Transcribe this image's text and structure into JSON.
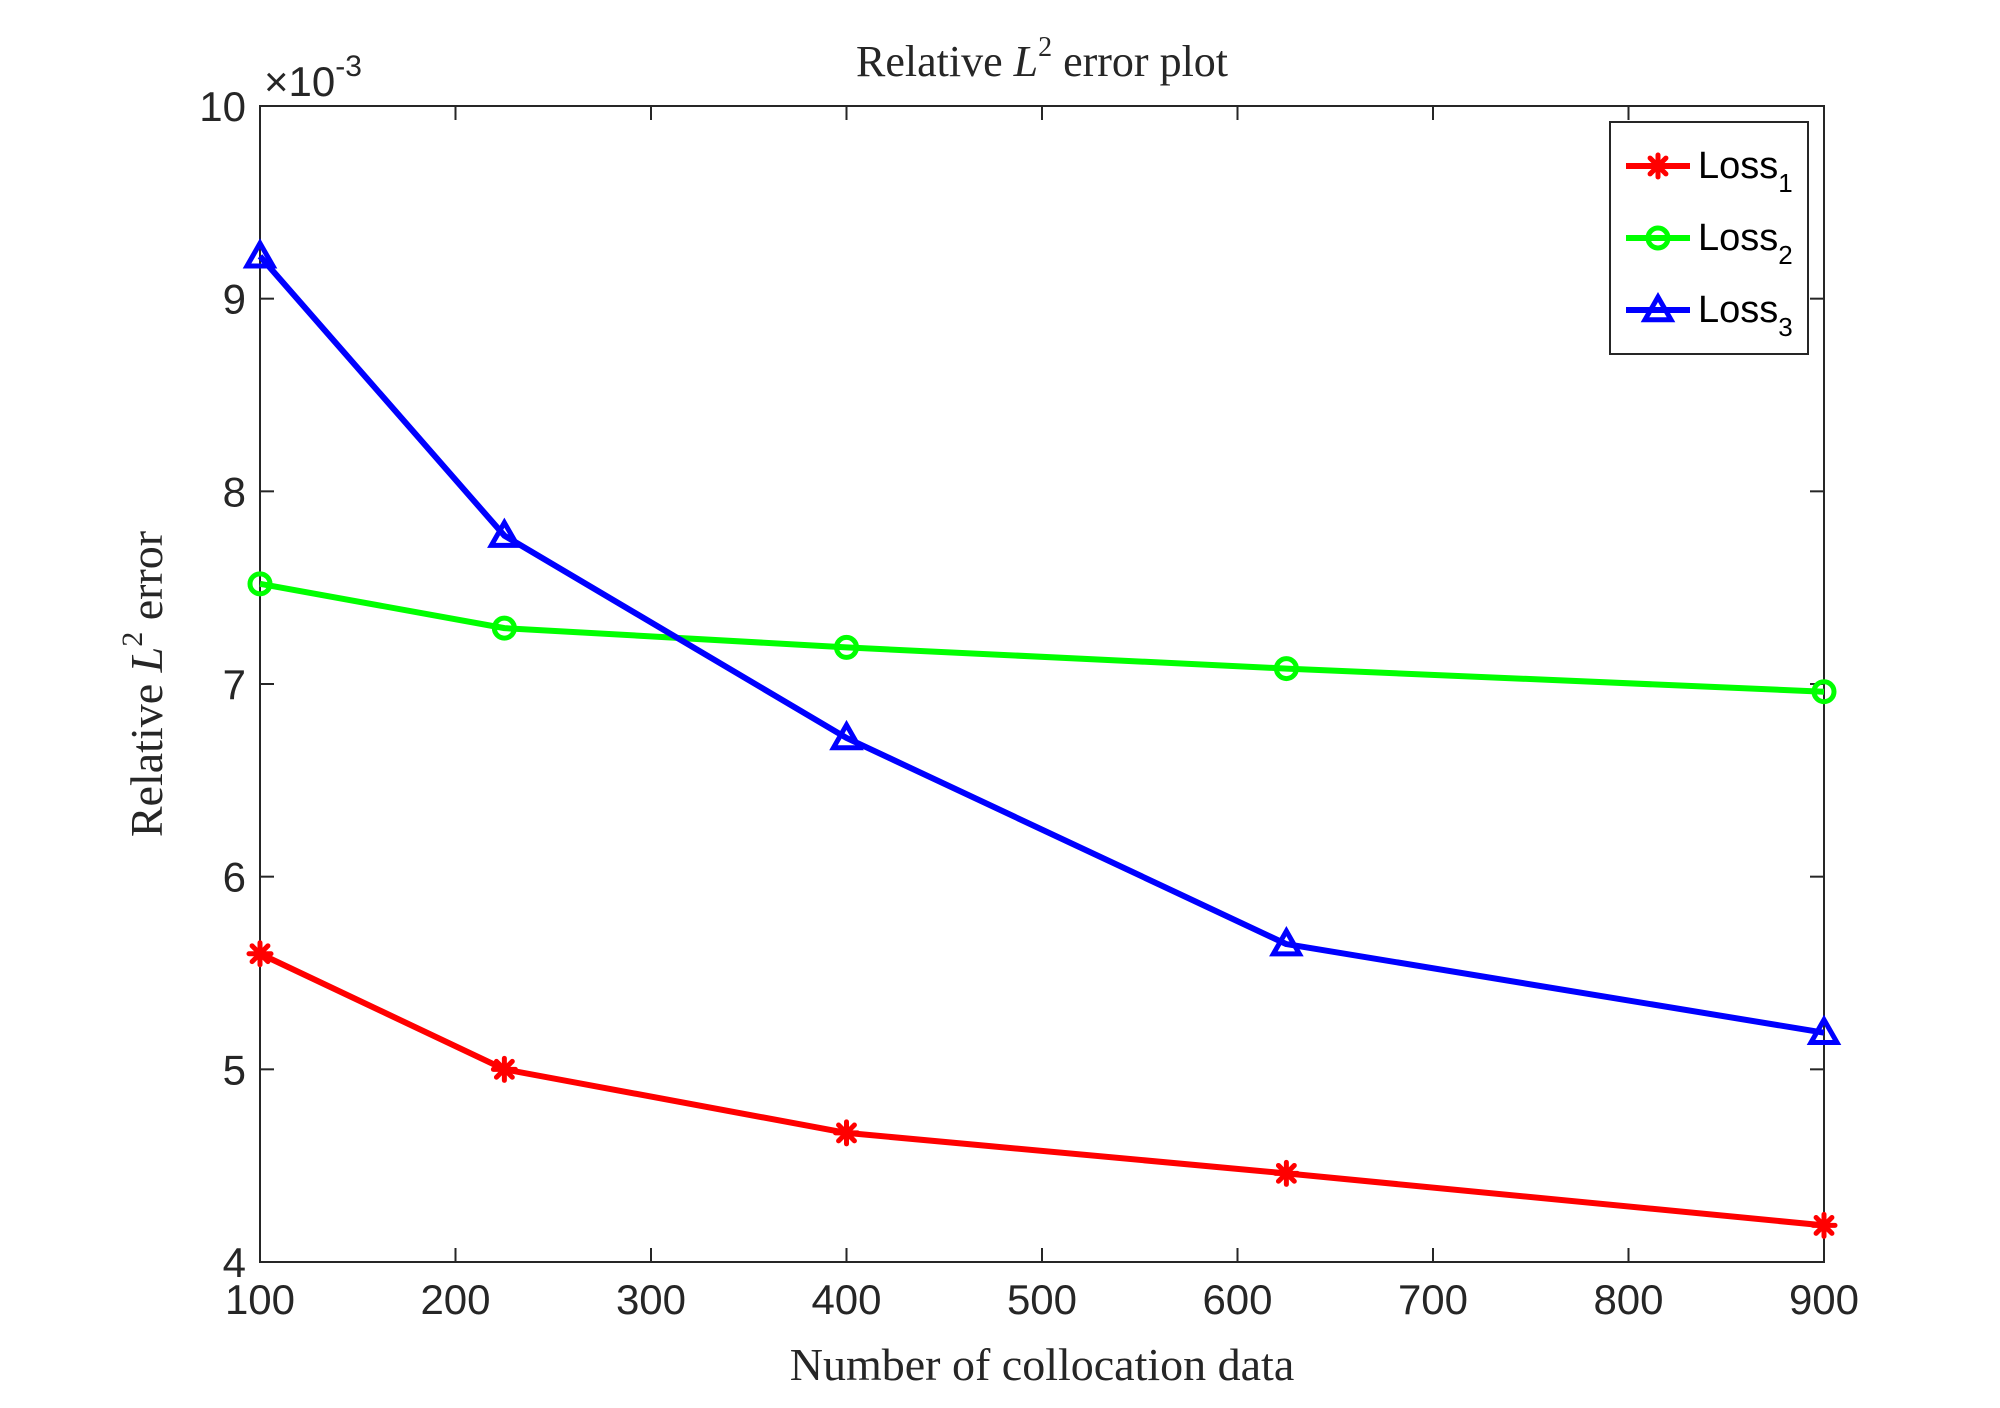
{
  "chart_data": {
    "type": "line",
    "title_prefix": "Relative ",
    "title_symbol": "L",
    "title_sup": "2",
    "title_suffix": " error plot",
    "xlabel": "Number of collocation data",
    "ylabel_prefix": "Relative ",
    "ylabel_symbol": "L",
    "ylabel_sup": "2",
    "ylabel_suffix": " error",
    "exponent_base": "×10",
    "exponent_power": "-3",
    "xlim": [
      100,
      900
    ],
    "ylim": [
      4,
      10
    ],
    "xticks": [
      100,
      200,
      300,
      400,
      500,
      600,
      700,
      800,
      900
    ],
    "yticks": [
      4,
      5,
      6,
      7,
      8,
      9,
      10
    ],
    "x": [
      100,
      225,
      400,
      625,
      900
    ],
    "series": [
      {
        "name": "Loss",
        "sub": "1",
        "color": "#ff0000",
        "marker": "asterisk",
        "values": [
          5.6,
          5.0,
          4.67,
          4.46,
          4.19
        ]
      },
      {
        "name": "Loss",
        "sub": "2",
        "color": "#00ff00",
        "marker": "circle",
        "values": [
          7.52,
          7.29,
          7.19,
          7.08,
          6.96
        ]
      },
      {
        "name": "Loss",
        "sub": "3",
        "color": "#0000ff",
        "marker": "triangle",
        "values": [
          9.22,
          7.77,
          6.72,
          5.65,
          5.19
        ]
      }
    ],
    "legend_position": "top-right",
    "grid": false
  }
}
